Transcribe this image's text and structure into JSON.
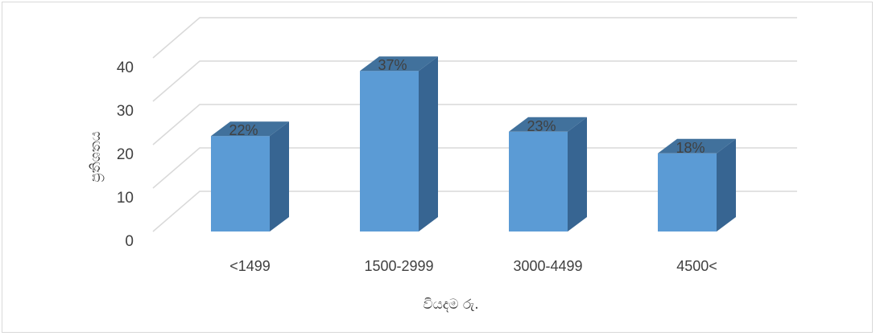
{
  "chart_data": {
    "type": "bar",
    "title": "",
    "categories": [
      "<1499",
      "1500-2999",
      "3000-4499",
      "4500<"
    ],
    "values": [
      22,
      37,
      23,
      18
    ],
    "data_labels": [
      "22%",
      "37%",
      "23%",
      "18%"
    ],
    "xlabel": "වියදම රු.",
    "ylabel": "ප්‍රතිශතය",
    "yticks": [
      "0",
      "10",
      "20",
      "30",
      "40"
    ],
    "ylim": [
      0,
      40
    ],
    "grid": true,
    "legend": "none",
    "style": "3d-column",
    "colors": {
      "front": "#5b9bd5",
      "top": "#41719c",
      "side": "#376592",
      "grid": "#d9d9d9"
    }
  }
}
